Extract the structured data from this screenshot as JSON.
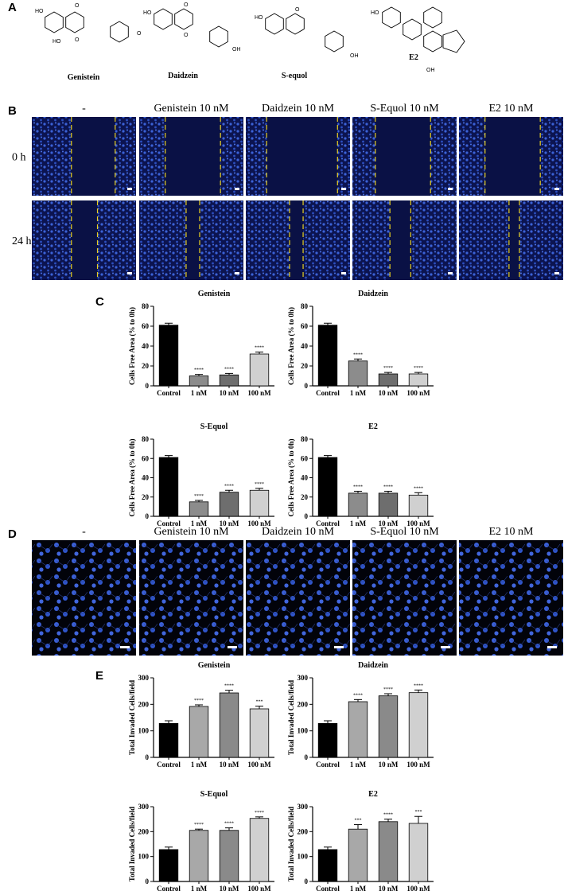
{
  "panels": [
    "A",
    "B",
    "C",
    "D",
    "E"
  ],
  "structures": [
    {
      "name": "Genistein",
      "atoms": [
        "HO",
        "O",
        "HO",
        "O",
        "O"
      ]
    },
    {
      "name": "Daidzein",
      "atoms": [
        "HO",
        "O",
        "O",
        "OH"
      ]
    },
    {
      "name": "S-equol",
      "atoms": [
        "HO",
        "O",
        "OH"
      ]
    },
    {
      "name": "E2",
      "atoms": [
        "HO",
        "OH"
      ]
    }
  ],
  "migration": {
    "columns": [
      "-",
      "Genistein 10 nM",
      "Daidzein 10 nM",
      "S-Equol 10 nM",
      "E2 10 nM"
    ],
    "rows": [
      "0 h",
      "24 h"
    ]
  },
  "invasion": {
    "columns": [
      "-",
      "Genistein 10 nM",
      "Daidzein 10 nM",
      "S-Equol 10 nM",
      "E2 10 nM"
    ]
  },
  "chart_data": [
    {
      "type": "bar",
      "title": "Genistein",
      "ylabel": "Cells Free Area (% to 0h)",
      "categories": [
        "Control",
        "1 nM",
        "10 nM",
        "100 nM"
      ],
      "values": [
        61,
        10,
        11,
        32
      ],
      "errors": [
        2,
        1.5,
        1.5,
        2
      ],
      "colors": [
        "#000000",
        "#8c8c8c",
        "#6e6e6e",
        "#d0d0d0"
      ],
      "annotations": [
        null,
        "****",
        "****",
        "****"
      ],
      "ylim": [
        0,
        80
      ],
      "yticks": [
        0,
        20,
        40,
        60,
        80
      ]
    },
    {
      "type": "bar",
      "title": "Daidzein",
      "ylabel": "Cells Free Area (% to 0h)",
      "categories": [
        "Control",
        "1 nM",
        "10 nM",
        "100 nM"
      ],
      "values": [
        61,
        25,
        12,
        12
      ],
      "errors": [
        2,
        2,
        1.5,
        1.5
      ],
      "colors": [
        "#000000",
        "#8c8c8c",
        "#6e6e6e",
        "#d0d0d0"
      ],
      "annotations": [
        null,
        "****",
        "****",
        "****"
      ],
      "ylim": [
        0,
        80
      ],
      "yticks": [
        0,
        20,
        40,
        60,
        80
      ]
    },
    {
      "type": "bar",
      "title": "S-Equol",
      "ylabel": "Cells Free Area (% to 0h)",
      "categories": [
        "Control",
        "1 nM",
        "10 nM",
        "100 nM"
      ],
      "values": [
        61,
        15,
        25,
        27
      ],
      "errors": [
        2,
        1.5,
        2,
        2
      ],
      "colors": [
        "#000000",
        "#8c8c8c",
        "#6e6e6e",
        "#d0d0d0"
      ],
      "annotations": [
        null,
        "****",
        "****",
        "****"
      ],
      "ylim": [
        0,
        80
      ],
      "yticks": [
        0,
        20,
        40,
        60,
        80
      ]
    },
    {
      "type": "bar",
      "title": "E2",
      "ylabel": "Cells Free Area (% to 0h)",
      "categories": [
        "Control",
        "1 nM",
        "10 nM",
        "100 nM"
      ],
      "values": [
        61,
        24,
        24,
        22
      ],
      "errors": [
        2,
        2,
        2,
        2.5
      ],
      "colors": [
        "#000000",
        "#8c8c8c",
        "#6e6e6e",
        "#d0d0d0"
      ],
      "annotations": [
        null,
        "****",
        "****",
        "****"
      ],
      "ylim": [
        0,
        80
      ],
      "yticks": [
        0,
        20,
        40,
        60,
        80
      ]
    },
    {
      "type": "bar",
      "title": "Genistein",
      "ylabel": "Total Invaded Cells/field",
      "categories": [
        "Control",
        "1 nM",
        "10 nM",
        "100 nM"
      ],
      "values": [
        128,
        192,
        243,
        183
      ],
      "errors": [
        10,
        6,
        10,
        10
      ],
      "colors": [
        "#000000",
        "#a8a8a8",
        "#8a8a8a",
        "#d0d0d0"
      ],
      "annotations": [
        null,
        "****",
        "****",
        "***"
      ],
      "ylim": [
        0,
        300
      ],
      "yticks": [
        0,
        100,
        200,
        300
      ]
    },
    {
      "type": "bar",
      "title": "Daidzein",
      "ylabel": "Total Invaded Cells/field",
      "categories": [
        "Control",
        "1 nM",
        "10 nM",
        "100 nM"
      ],
      "values": [
        128,
        210,
        232,
        244
      ],
      "errors": [
        10,
        8,
        8,
        10
      ],
      "colors": [
        "#000000",
        "#a8a8a8",
        "#8a8a8a",
        "#d0d0d0"
      ],
      "annotations": [
        null,
        "****",
        "****",
        "****"
      ],
      "ylim": [
        0,
        300
      ],
      "yticks": [
        0,
        100,
        200,
        300
      ]
    },
    {
      "type": "bar",
      "title": "S-Equol",
      "ylabel": "Total Invaded Cells/field",
      "categories": [
        "Control",
        "1 nM",
        "10 nM",
        "100 nM"
      ],
      "values": [
        128,
        205,
        205,
        253
      ],
      "errors": [
        10,
        5,
        10,
        6
      ],
      "colors": [
        "#000000",
        "#a8a8a8",
        "#8a8a8a",
        "#d0d0d0"
      ],
      "annotations": [
        null,
        "****",
        "****",
        "****"
      ],
      "ylim": [
        0,
        300
      ],
      "yticks": [
        0,
        100,
        200,
        300
      ]
    },
    {
      "type": "bar",
      "title": "E2",
      "ylabel": "Total Invaded Cells/field",
      "categories": [
        "Control",
        "1 nM",
        "10 nM",
        "100 nM"
      ],
      "values": [
        128,
        210,
        240,
        233
      ],
      "errors": [
        10,
        18,
        10,
        28
      ],
      "colors": [
        "#000000",
        "#a8a8a8",
        "#8a8a8a",
        "#d0d0d0"
      ],
      "annotations": [
        null,
        "***",
        "****",
        "***"
      ],
      "ylim": [
        0,
        300
      ],
      "yticks": [
        0,
        100,
        200,
        300
      ]
    }
  ]
}
